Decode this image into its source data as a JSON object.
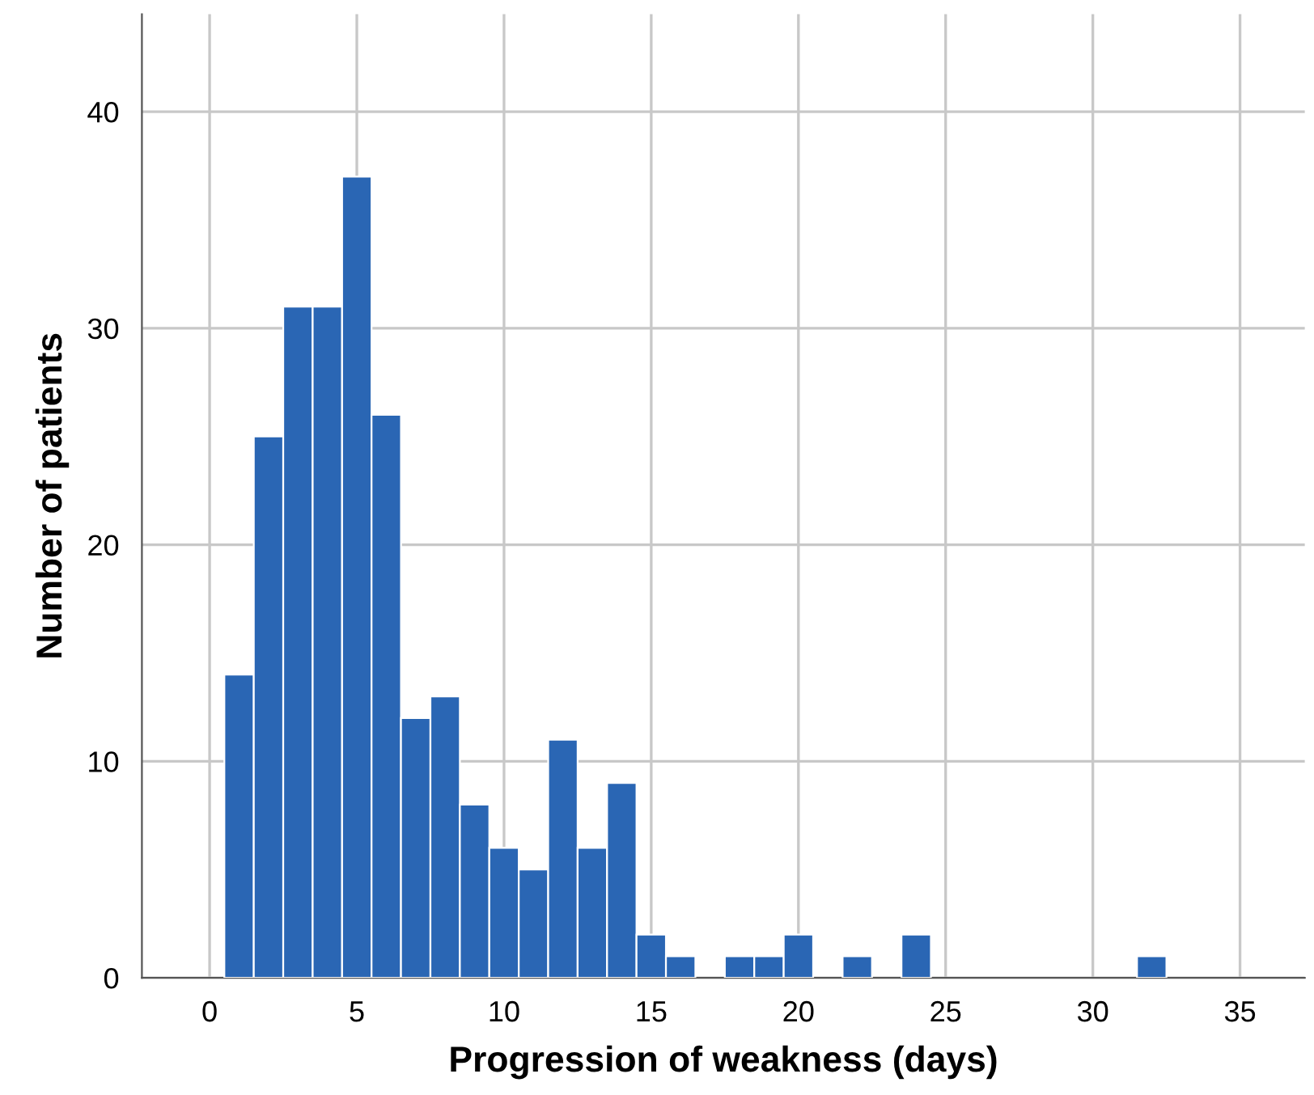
{
  "chart_data": {
    "type": "histogram",
    "xlabel": "Progression of weakness (days)",
    "ylabel": "Number of patients",
    "bins": [
      0.5,
      1.5,
      2.5,
      3.5,
      4.5,
      5.5,
      6.5,
      7.5,
      8.5,
      9.5,
      10.5,
      11.5,
      12.5,
      13.5,
      14.5,
      15.5,
      16.5,
      17.5,
      18.5,
      19.5,
      20.5,
      21.5,
      22.5,
      23.5,
      24.5,
      25.5,
      26.5,
      27.5,
      28.5,
      29.5,
      30.5,
      31.5,
      32.5
    ],
    "values": [
      14,
      25,
      31,
      31,
      37,
      26,
      12,
      13,
      8,
      6,
      5,
      11,
      6,
      9,
      2,
      1,
      0,
      1,
      1,
      2,
      0,
      1,
      0,
      2,
      0,
      0,
      0,
      0,
      0,
      0,
      0,
      1
    ],
    "color": "#2a66b4",
    "xlim": [
      -2.3,
      37.2
    ],
    "ylim": [
      0,
      44.5
    ],
    "xticks": [
      0,
      5,
      10,
      15,
      20,
      25,
      30,
      35
    ],
    "yticks": [
      0,
      10,
      20,
      30,
      40
    ],
    "grid": true
  }
}
